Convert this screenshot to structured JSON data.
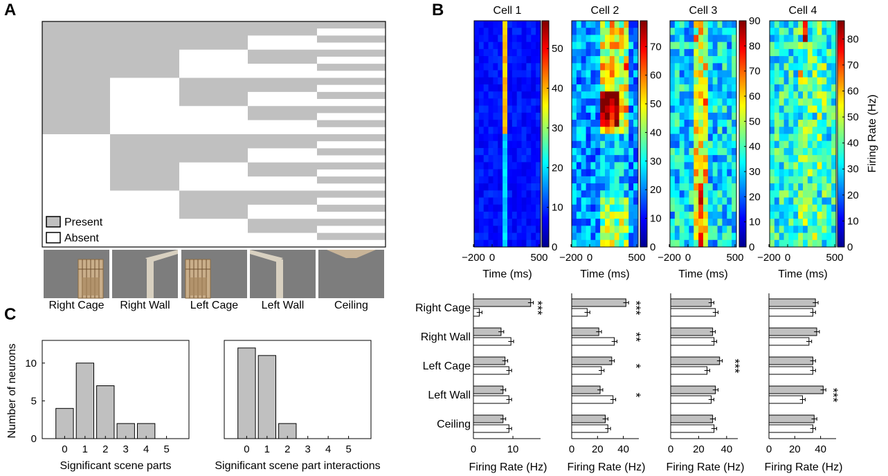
{
  "panels": {
    "a": "A",
    "b": "B",
    "c": "C"
  },
  "panel_a": {
    "legend_present": "Present",
    "legend_absent": "Absent",
    "parts": [
      "Right Cage",
      "Right Wall",
      "Left Cage",
      "Left Wall",
      "Ceiling"
    ],
    "colors": {
      "present": "#c0c0c0",
      "absent": "#ffffff"
    }
  },
  "panel_b": {
    "cells": [
      "Cell 1",
      "Cell 2",
      "Cell 3",
      "Cell 4"
    ],
    "time_label": "Time (ms)",
    "time_ticks": [
      "−200",
      "0",
      "500"
    ],
    "colorbar_label": "Firing Rate (Hz)",
    "colorbar_ticks": [
      [
        "0",
        "10",
        "20",
        "30",
        "40",
        "50"
      ],
      [
        "0",
        "10",
        "20",
        "30",
        "40",
        "50",
        "60",
        "70"
      ],
      [
        "0",
        "10",
        "20",
        "30",
        "40",
        "50",
        "60",
        "70",
        "80",
        "90"
      ],
      [
        "0",
        "10",
        "20",
        "30",
        "40",
        "50",
        "60",
        "70",
        "80"
      ]
    ],
    "colorbar_max": [
      57,
      79,
      90,
      87
    ]
  },
  "chart_data": [
    {
      "type": "bar",
      "orientation": "horizontal",
      "subtitle": "Cell 1",
      "categories": [
        "Right Cage",
        "Right Wall",
        "Left Cage",
        "Left Wall",
        "Ceiling"
      ],
      "series": [
        {
          "name": "Present",
          "values": [
            14.5,
            7,
            8,
            7.5,
            7.5
          ]
        },
        {
          "name": "Absent",
          "values": [
            1.5,
            9.5,
            9,
            9,
            9
          ]
        }
      ],
      "significance": [
        "***",
        "",
        "",
        "",
        ""
      ],
      "xlabel": "Firing Rate (Hz)",
      "xticks": [
        0,
        10
      ],
      "xlim": [
        0,
        17
      ]
    },
    {
      "type": "bar",
      "orientation": "horizontal",
      "subtitle": "Cell 2",
      "categories": [
        "Right Cage",
        "Right Wall",
        "Left Cage",
        "Left Wall",
        "Ceiling"
      ],
      "series": [
        {
          "name": "Present",
          "values": [
            42,
            21,
            31,
            22,
            26
          ]
        },
        {
          "name": "Absent",
          "values": [
            12,
            33,
            23,
            32,
            28
          ]
        }
      ],
      "significance": [
        "***",
        "**",
        "*",
        "*",
        ""
      ],
      "xlabel": "Firing Rate (Hz)",
      "xticks": [
        0,
        20,
        40
      ],
      "xlim": [
        0,
        52
      ]
    },
    {
      "type": "bar",
      "orientation": "horizontal",
      "subtitle": "Cell 3",
      "categories": [
        "Right Cage",
        "Right Wall",
        "Left Cage",
        "Left Wall",
        "Ceiling"
      ],
      "series": [
        {
          "name": "Present",
          "values": [
            29,
            30,
            35,
            32,
            30
          ]
        },
        {
          "name": "Absent",
          "values": [
            32,
            31,
            26,
            29,
            31
          ]
        }
      ],
      "significance": [
        "",
        "",
        "***",
        "",
        ""
      ],
      "xlabel": "Firing Rate (Hz)",
      "xticks": [
        0,
        20,
        40
      ],
      "xlim": [
        0,
        48
      ]
    },
    {
      "type": "bar",
      "orientation": "horizontal",
      "subtitle": "Cell 4",
      "categories": [
        "Right Cage",
        "Right Wall",
        "Left Cage",
        "Left Wall",
        "Ceiling"
      ],
      "series": [
        {
          "name": "Present",
          "values": [
            36,
            37,
            34,
            42,
            35
          ]
        },
        {
          "name": "Absent",
          "values": [
            34,
            31,
            34,
            26,
            34
          ]
        }
      ],
      "significance": [
        "",
        "",
        "",
        "***",
        ""
      ],
      "xlabel": "Firing Rate (Hz)",
      "xticks": [
        0,
        20,
        40
      ],
      "xlim": [
        0,
        52
      ]
    },
    {
      "type": "bar",
      "categories": [
        "0",
        "1",
        "2",
        "3",
        "4",
        "5"
      ],
      "values": [
        4,
        10,
        7,
        2,
        2,
        0
      ],
      "xlabel": "Significant scene parts",
      "ylabel": "Number of neurons",
      "yticks": [
        0,
        5,
        10
      ],
      "ylim": [
        0,
        13
      ]
    },
    {
      "type": "bar",
      "categories": [
        "0",
        "1",
        "2",
        "3",
        "4",
        "5"
      ],
      "values": [
        12,
        11,
        2,
        0,
        0,
        0
      ],
      "xlabel": "Significant scene part interactions",
      "ylim": [
        0,
        13
      ]
    }
  ]
}
